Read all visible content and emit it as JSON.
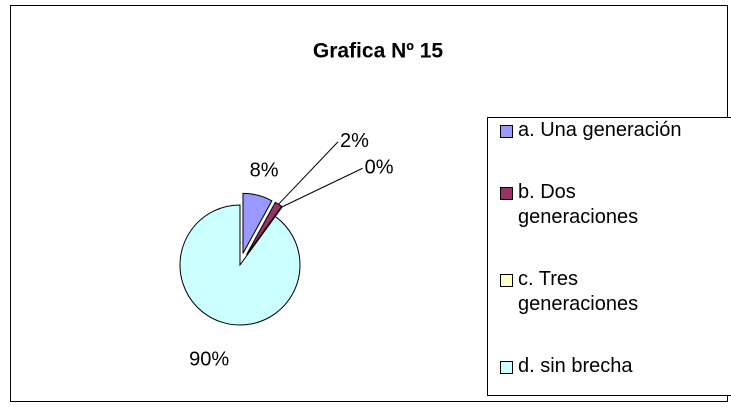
{
  "chart_data": {
    "type": "pie",
    "title": "Grafica Nº 15",
    "categories": [
      "a. Una generación",
      "b. Dos generaciones",
      "c. Tres generaciones",
      "d. sin brecha"
    ],
    "values": [
      8,
      2,
      0,
      90
    ],
    "value_labels": [
      "8%",
      "2%",
      "0%",
      "90%"
    ],
    "colors": [
      "#9999ff",
      "#993366",
      "#ffffcc",
      "#ccffff"
    ],
    "legend": "right"
  }
}
